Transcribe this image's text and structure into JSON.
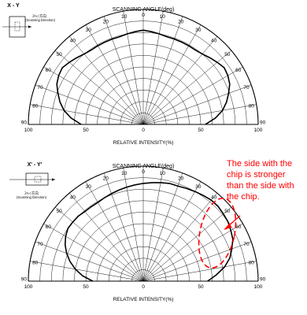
{
  "chart_data": [
    {
      "type": "polar",
      "title": "SCANNING ANGLE(deg)",
      "xlabel": "RELATIVE INTENSITY(%)",
      "orientation_label": "X - Y",
      "inset_note_line1": "ｽｷｬﾝ方向",
      "inset_note_line2": "(Scanning Direction)",
      "angle_ticks_left": [
        "90",
        "80",
        "70",
        "60",
        "50",
        "40",
        "30",
        "20",
        "10"
      ],
      "angle_ticks_right": [
        "10",
        "20",
        "30",
        "40",
        "50",
        "60",
        "70",
        "80",
        "90"
      ],
      "angle_tick_top": "0",
      "radial_ticks": [
        "100",
        "50",
        "0",
        "50",
        "100"
      ],
      "angle_range_deg": [
        -90,
        90
      ],
      "radial_range_pct": [
        0,
        100
      ],
      "grid": true,
      "series": [
        {
          "angles_deg": [
            -90,
            -85,
            -80,
            -75,
            -70,
            -65,
            -60,
            -55,
            -50,
            -45,
            -40,
            -35,
            -30,
            -25,
            -20,
            -15,
            -10,
            -5,
            0,
            5,
            10,
            15,
            20,
            25,
            30,
            35,
            40,
            45,
            50,
            55,
            60,
            65,
            70,
            75,
            80,
            85,
            90
          ],
          "intensity_pct": [
            54,
            63,
            70,
            75,
            79,
            83,
            85,
            86,
            84,
            82,
            80,
            79,
            79,
            79,
            79,
            79,
            80,
            81,
            82,
            81,
            80,
            79,
            79,
            79,
            79,
            79,
            80,
            82,
            84,
            86,
            85,
            83,
            79,
            75,
            70,
            63,
            54
          ]
        }
      ]
    },
    {
      "type": "polar",
      "title": "SCANNING ANGLE(deg)",
      "xlabel": "RELATIVE INTENSITY(%)",
      "orientation_label": "X' - Y'",
      "inset_note_line1": "ｽｷｬﾝ方向",
      "inset_note_line2": "(Scanning Direction)",
      "angle_ticks_left": [
        "90",
        "80",
        "70",
        "60",
        "50",
        "40",
        "30",
        "20",
        "10"
      ],
      "angle_ticks_right": [
        "10",
        "20",
        "30",
        "40",
        "50",
        "60",
        "70",
        "80",
        "90"
      ],
      "angle_tick_top": "0",
      "radial_ticks": [
        "100",
        "50",
        "0",
        "50",
        "100"
      ],
      "angle_range_deg": [
        -90,
        90
      ],
      "radial_range_pct": [
        0,
        100
      ],
      "grid": true,
      "series": [
        {
          "angles_deg": [
            -90,
            -85,
            -80,
            -75,
            -70,
            -65,
            -60,
            -55,
            -50,
            -45,
            -40,
            -35,
            -30,
            -25,
            -20,
            -15,
            -10,
            -5,
            0,
            5,
            10,
            15,
            20,
            25,
            30,
            35,
            40,
            45,
            50,
            55,
            60,
            65,
            70,
            75,
            80,
            85,
            90
          ],
          "intensity_pct": [
            44,
            53,
            60,
            66,
            71,
            75,
            78,
            80,
            80,
            80,
            79,
            79,
            79,
            80,
            81,
            82,
            83,
            84,
            85,
            86,
            87,
            88,
            88,
            89,
            90,
            91,
            92,
            92,
            91,
            90,
            88,
            86,
            82,
            78,
            72,
            64,
            56
          ]
        }
      ]
    }
  ],
  "annotation": {
    "text_lines": [
      "The side with the",
      "chip is stronger",
      "than the side with",
      "the chip."
    ],
    "color": "#ff0000"
  }
}
